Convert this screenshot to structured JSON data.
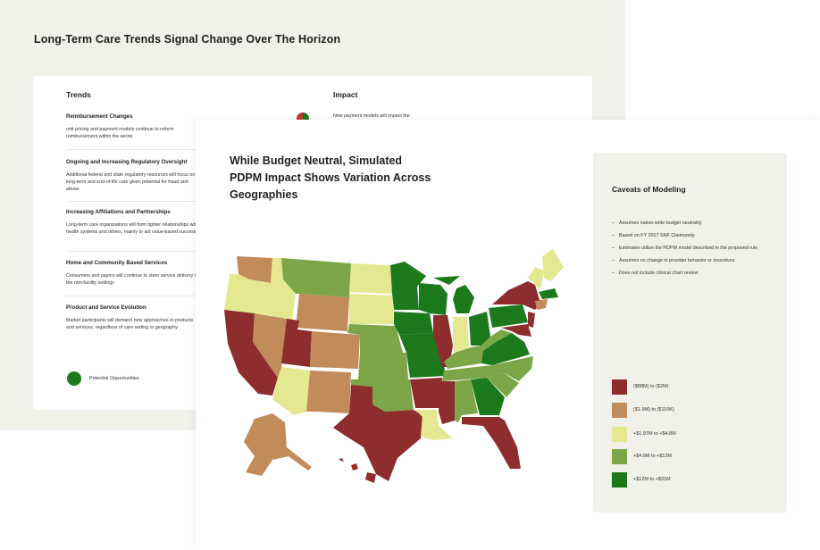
{
  "back_slide": {
    "title": "Long-Term Care Trends Signal Change Over The Horizon",
    "trends_heading": "Trends",
    "impact_heading": "Impact",
    "trends": [
      {
        "title": "Reimbursement Changes",
        "desc": "unit pricing and payment models continue to reform reimbursement within the sector"
      },
      {
        "title": "Ongoing and Increasing Regulatory Oversight",
        "desc": "Additional federal and state regulatory resources will focus on long-term and end-of-life care given potential for fraud and abuse"
      },
      {
        "title": "Increasing Affiliations and Partnerships",
        "desc": "Long-term care organizations will form tighter relationships with health systems and others, mainly to aid value-based success"
      },
      {
        "title": "Home and Community Based Services",
        "desc": "Consumers and payors will continue to steer service delivery to the non-facility settings"
      },
      {
        "title": "Product and Service Evolution",
        "desc": "Market participants will demand new approaches to products and services, regardless of care setting or geography"
      }
    ],
    "impact_first": "New payment models will impact the",
    "legend_label": "Potential Opportunities",
    "colors": {
      "opportunity": "#1c7a1c",
      "risk": "#c0392b"
    }
  },
  "front_slide": {
    "title": "While Budget Neutral, Simulated PDPM Impact Shows Variation Across Geographies",
    "caveats_heading": "Caveats of Modeling",
    "caveats": [
      "Assumes nation-wide budget neutrality",
      "Based on FY 2017 SNF Claimsonly",
      "Estimates utilize the PDPM model described in the proposed rule",
      "Assumes no change in provider behavior or incentives",
      "Does not include clinical chart review"
    ],
    "map_legend": [
      {
        "label": "($88M) to ($2M)",
        "color": "#8e2d2d"
      },
      {
        "label": "($1.9M) to ($110K)",
        "color": "#c28b5a"
      },
      {
        "label": "+$1.97M to +$4.8M",
        "color": "#e4e891"
      },
      {
        "label": "+$4.8M to +$12M",
        "color": "#7da648"
      },
      {
        "label": "+$12M to +$31M",
        "color": "#1c7a1c"
      }
    ]
  }
}
